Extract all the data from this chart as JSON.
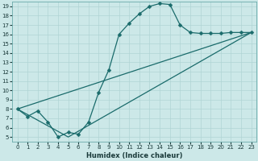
{
  "title": "",
  "xlabel": "Humidex (Indice chaleur)",
  "ylabel": "",
  "bg_color": "#cce8e8",
  "line_color": "#1a6b6b",
  "grid_color": "#b0d4d4",
  "xlim": [
    -0.5,
    23.5
  ],
  "ylim": [
    4.5,
    19.5
  ],
  "xticks": [
    0,
    1,
    2,
    3,
    4,
    5,
    6,
    7,
    8,
    9,
    10,
    11,
    12,
    13,
    14,
    15,
    16,
    17,
    18,
    19,
    20,
    21,
    22,
    23
  ],
  "yticks": [
    5,
    6,
    7,
    8,
    9,
    10,
    11,
    12,
    13,
    14,
    15,
    16,
    17,
    18,
    19
  ],
  "curve1_x": [
    0,
    1,
    2,
    3,
    4,
    5,
    6,
    7,
    8,
    9,
    10,
    11,
    12,
    13,
    14,
    15,
    16,
    17,
    18,
    19,
    20,
    21,
    22,
    23
  ],
  "curve1_y": [
    8.0,
    7.2,
    7.8,
    6.6,
    5.0,
    5.5,
    5.3,
    6.6,
    9.8,
    12.2,
    16.0,
    17.2,
    18.2,
    19.0,
    19.3,
    19.2,
    17.0,
    16.2,
    16.1,
    16.1,
    16.1,
    16.2,
    16.2,
    16.2
  ],
  "line2_x": [
    0,
    23
  ],
  "line2_y": [
    8.0,
    16.2
  ],
  "line3_x": [
    0,
    5,
    23
  ],
  "line3_y": [
    8.0,
    5.0,
    16.2
  ],
  "markersize": 2.5,
  "linewidth": 0.9,
  "tick_fontsize": 5.0,
  "xlabel_fontsize": 6.0
}
